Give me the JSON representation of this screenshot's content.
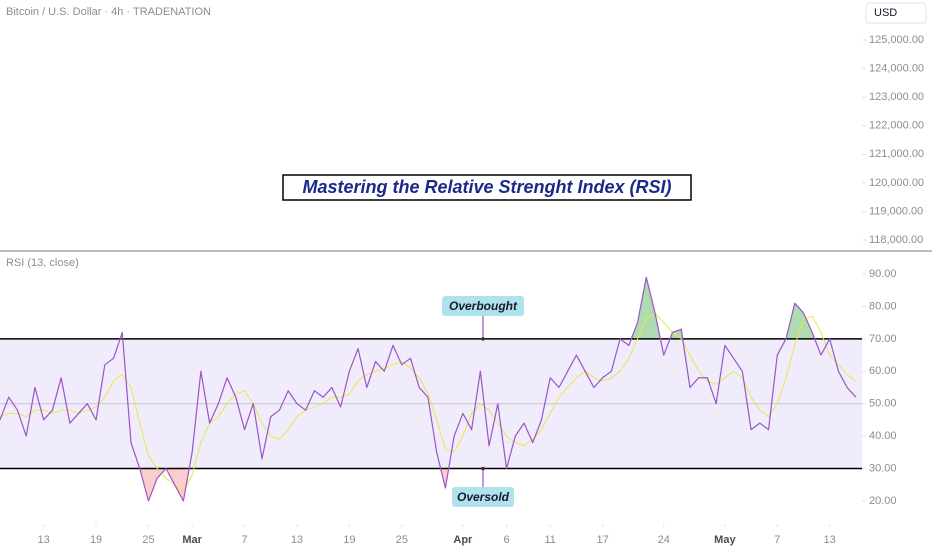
{
  "chart_data": [
    {
      "type": "line",
      "title": "Bitcoin / U.S. Dollar · 4h · TRADENATION",
      "currency": "USD",
      "annotation": "Mastering the Relative Strenght Index (RSI)",
      "ylim": [
        117650,
        126400
      ],
      "yticks": [
        {
          "value": 118000,
          "label": "118,000.00"
        },
        {
          "value": 119000,
          "label": "119,000.00"
        },
        {
          "value": 120000,
          "label": "120,000.00"
        },
        {
          "value": 121000,
          "label": "121,000.00"
        },
        {
          "value": 122000,
          "label": "122,000.00"
        },
        {
          "value": 123000,
          "label": "123,000.00"
        },
        {
          "value": 124000,
          "label": "124,000.00"
        },
        {
          "value": 125000,
          "label": "125,000.00"
        }
      ]
    },
    {
      "type": "line",
      "title": "RSI (13, close)",
      "ylim": [
        13.5,
        96.8
      ],
      "yticks": [
        {
          "value": 20,
          "label": "20.00"
        },
        {
          "value": 30,
          "label": "30.00"
        },
        {
          "value": 40,
          "label": "40.00"
        },
        {
          "value": 50,
          "label": "50.00"
        },
        {
          "value": 60,
          "label": "60.00"
        },
        {
          "value": 70,
          "label": "70.00"
        },
        {
          "value": 80,
          "label": "80.00"
        },
        {
          "value": 90,
          "label": "90.00"
        }
      ],
      "bands": [
        {
          "value": 70,
          "label": "Overbought"
        },
        {
          "value": 30,
          "label": "Oversold"
        }
      ],
      "midline": 50,
      "band_color": "#f1ecfb",
      "xlim": [
        -5,
        93.7
      ],
      "xticks": [
        {
          "value": 0,
          "label": "13"
        },
        {
          "value": 6,
          "label": "19"
        },
        {
          "value": 12,
          "label": "25"
        },
        {
          "value": 17,
          "label": "Mar"
        },
        {
          "value": 23,
          "label": "7"
        },
        {
          "value": 29,
          "label": "13"
        },
        {
          "value": 35,
          "label": "19"
        },
        {
          "value": 41,
          "label": "25"
        },
        {
          "value": 48,
          "label": "Apr"
        },
        {
          "value": 53,
          "label": "6"
        },
        {
          "value": 58,
          "label": "11"
        },
        {
          "value": 64,
          "label": "17"
        },
        {
          "value": 71,
          "label": "24"
        },
        {
          "value": 78,
          "label": "May"
        },
        {
          "value": 84,
          "label": "7"
        },
        {
          "value": 90,
          "label": "13"
        }
      ],
      "x": [
        -5,
        -4,
        -3,
        -2,
        -1,
        0,
        1,
        2,
        3,
        4,
        5,
        6,
        7,
        8,
        9,
        10,
        11,
        12,
        13,
        14,
        15,
        16,
        17,
        18,
        19,
        20,
        21,
        22,
        23,
        24,
        25,
        26,
        27,
        28,
        29,
        30,
        31,
        32,
        33,
        34,
        35,
        36,
        37,
        38,
        39,
        40,
        41,
        42,
        43,
        44,
        45,
        46,
        47,
        48,
        49,
        50,
        51,
        52,
        53,
        54,
        55,
        56,
        57,
        58,
        59,
        60,
        61,
        62,
        63,
        64,
        65,
        66,
        67,
        68,
        69,
        70,
        71,
        72,
        73,
        74,
        75,
        76,
        77,
        78,
        79,
        80,
        81,
        82,
        83,
        84,
        85,
        86,
        87,
        88,
        89,
        90,
        91,
        92,
        93
      ],
      "series": [
        {
          "color": "#9a55c6",
          "values": [
            45,
            52,
            48,
            40,
            55,
            45,
            48,
            58,
            44,
            47,
            50,
            45,
            62,
            64,
            72,
            38,
            30,
            20,
            27,
            30,
            25,
            20,
            35,
            60,
            44,
            50,
            58,
            52,
            42,
            50,
            33,
            46,
            48,
            54,
            50,
            48,
            54,
            52,
            55,
            49,
            60,
            67,
            55,
            63,
            60,
            68,
            62,
            64,
            55,
            52,
            35,
            24,
            40,
            47,
            42,
            60,
            37,
            50,
            30,
            40,
            44,
            38,
            45,
            58,
            55,
            60,
            65,
            60,
            55,
            58,
            60,
            70,
            68,
            75,
            89,
            78,
            65,
            72,
            73,
            55,
            58,
            58,
            50,
            68,
            64,
            60,
            42,
            44,
            42,
            65,
            70,
            81,
            78,
            72,
            65,
            70,
            60,
            55,
            52
          ]
        },
        {
          "color": "#e6e84c",
          "values": [
            46,
            47,
            47,
            46,
            48,
            48,
            47,
            48,
            48,
            47,
            48,
            49,
            52,
            57,
            59,
            55,
            44,
            34,
            30,
            27,
            25,
            23,
            28,
            38,
            44,
            46,
            50,
            53,
            54,
            50,
            44,
            40,
            39,
            42,
            46,
            48,
            49,
            50,
            52,
            52,
            53,
            57,
            59,
            60,
            61,
            62,
            63,
            61,
            58,
            53,
            45,
            36,
            35,
            40,
            47,
            50,
            48,
            44,
            40,
            38,
            37,
            39,
            42,
            47,
            52,
            55,
            58,
            60,
            58,
            57,
            58,
            60,
            64,
            70,
            76,
            78,
            75,
            72,
            70,
            65,
            60,
            57,
            56,
            58,
            60,
            58,
            52,
            48,
            46,
            50,
            58,
            68,
            76,
            77,
            72,
            65,
            62,
            59,
            57
          ]
        }
      ]
    }
  ]
}
